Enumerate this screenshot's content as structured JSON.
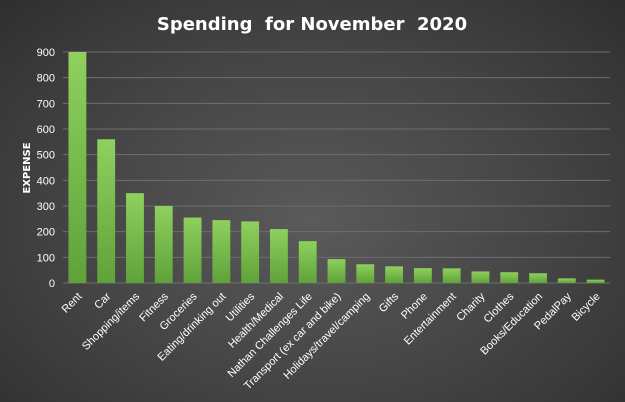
{
  "chart_data": {
    "type": "bar",
    "title": "Spending  for November  2020",
    "xlabel": "",
    "ylabel": "EXPENSE",
    "ylim": [
      0,
      900
    ],
    "yticks": [
      0,
      100,
      200,
      300,
      400,
      500,
      600,
      700,
      800,
      900
    ],
    "grid": true,
    "legend": "none",
    "bar_color": "#7cc34f",
    "categories": [
      "Rent",
      "Car",
      "Shopping/items",
      "Fitness",
      "Groceries",
      "Eating/drinking out",
      "Utilities",
      "Health/Medical",
      "Nathan Challenges Life",
      "Transport (ex car and bike)",
      "Holidays/travel/camping",
      "Gifts",
      "Phone",
      "Entertainment",
      "Charity",
      "Clothes",
      "Books/Education",
      "PedalPay",
      "Bicycle"
    ],
    "values": [
      900,
      560,
      350,
      300,
      255,
      245,
      240,
      210,
      163,
      93,
      73,
      65,
      58,
      57,
      45,
      42,
      38,
      18,
      13
    ]
  }
}
